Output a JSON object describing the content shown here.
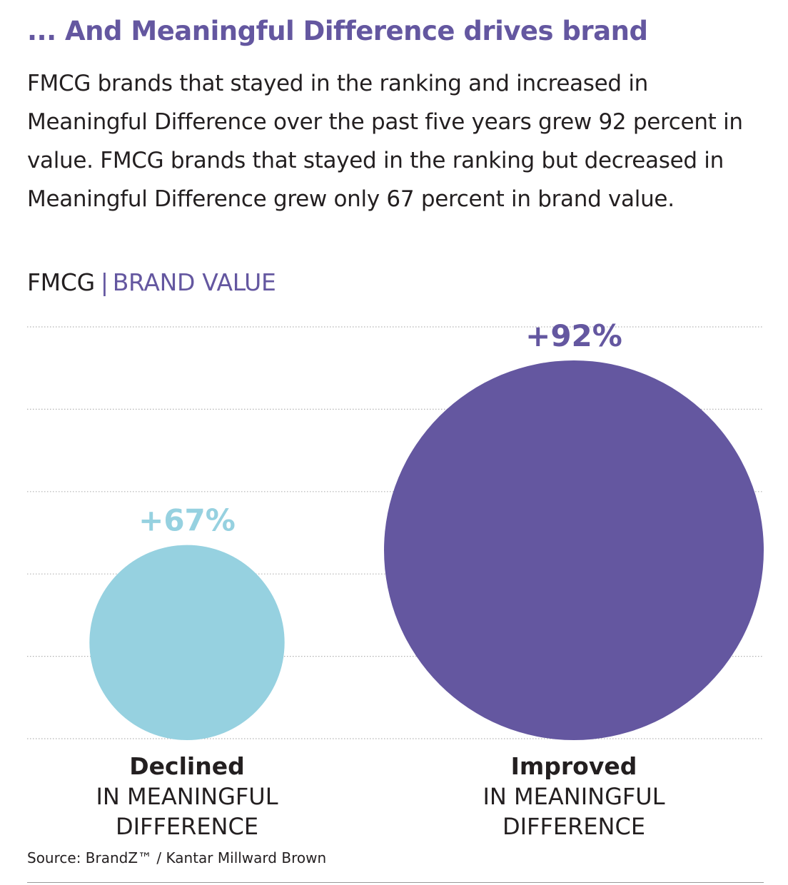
{
  "headline": "... And Meaningful Difference drives brand",
  "body": "FMCG brands that stayed in the ranking and increased in Meaningful Difference over the past five years grew 92 percent in value. FMCG brands that stayed in the ranking but decreased in Meaningful Difference grew only 67 percent in brand value.",
  "chart_label": {
    "left": "FMCG",
    "separator": "|",
    "right": "BRAND VALUE"
  },
  "chart_data": {
    "type": "bubble",
    "unit": "%",
    "categories": [
      {
        "name": "Declined",
        "sublabel_lines": [
          "IN MEANINGFUL",
          "DIFFERENCE"
        ],
        "value": 67,
        "value_label": "+67%",
        "color": "#96d1e0"
      },
      {
        "name": "Improved",
        "sublabel_lines": [
          "IN MEANINGFUL",
          "DIFFERENCE"
        ],
        "value": 92,
        "value_label": "+92%",
        "color": "#6457a0"
      }
    ],
    "grid": true,
    "legend": "none"
  },
  "source": "Source: BrandZ™ / Kantar Millward Brown",
  "colors": {
    "accent": "#6457a0",
    "light": "#96d1e0",
    "text": "#231f20",
    "grid": "#b3b3b3"
  }
}
